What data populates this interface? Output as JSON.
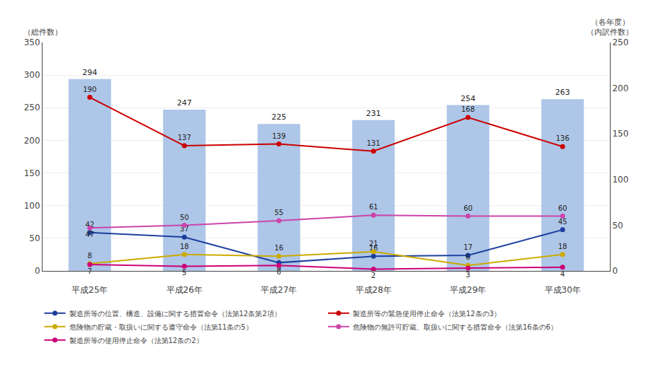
{
  "chart_data": {
    "type": "bar",
    "categories": [
      "平成25年",
      "平成26年",
      "平成27年",
      "平成28年",
      "平成29年",
      "平成30年"
    ],
    "series": [
      {
        "type": "bar",
        "color": "#aec6e8",
        "values": [
          294,
          247,
          225,
          231,
          254,
          263
        ]
      },
      {
        "type": "line",
        "axis": "y2",
        "marker": "circle",
        "name": "製造所等の位置、構造、設備に関する措置命令（法第12条第2項）",
        "color": "#1c3f9e",
        "values": [
          42,
          37,
          9,
          16,
          17,
          45
        ]
      },
      {
        "type": "line",
        "axis": "y2",
        "marker": "circle",
        "name": "製造所等の緊急使用停止命令（法第12条の3）",
        "color": "#cc0000",
        "values": [
          190,
          137,
          139,
          131,
          168,
          136
        ]
      },
      {
        "type": "line",
        "axis": "y2",
        "marker": "circle",
        "name": "危険物の貯蔵・取扱いに関する遵守命令（法第11条の5）",
        "color": "#ccaa00",
        "values": [
          8,
          18,
          16,
          21,
          6,
          18
        ]
      },
      {
        "type": "line",
        "axis": "y2",
        "marker": "circle",
        "name": "危険物の無許可貯蔵、取扱いに関する措置命令（法第16条の6）",
        "color": "#cc44aa",
        "values": [
          47,
          50,
          55,
          61,
          60,
          60
        ]
      },
      {
        "type": "line",
        "axis": "y2",
        "marker": "circle",
        "name": "製造所等の使用停止命令（法第12条の2）",
        "color": "#cc0077",
        "values": [
          7,
          5,
          6,
          2,
          3,
          4
        ]
      }
    ],
    "ylabel": "（総件数）",
    "y2label": "（各年度）\n（内訳件数）",
    "ylim": [
      0,
      350
    ],
    "yticks": [
      0,
      50,
      100,
      150,
      200,
      250,
      300,
      350
    ],
    "y2lim": [
      0,
      250
    ],
    "y2ticks": [
      0,
      50,
      100,
      150,
      200,
      250
    ],
    "grid": true,
    "data_labels": true,
    "legend": "bottom"
  }
}
